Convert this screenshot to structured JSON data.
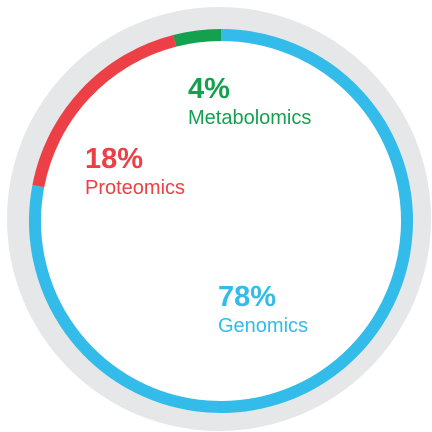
{
  "chart_data": {
    "type": "donut",
    "categories": [
      "Metabolomics",
      "Proteomics",
      "Genomics"
    ],
    "values": [
      4,
      18,
      78
    ],
    "value_labels": [
      "4%",
      "18%",
      "78%"
    ],
    "colors": [
      "#13a14f",
      "#ec3f46",
      "#33bbe9"
    ]
  }
}
